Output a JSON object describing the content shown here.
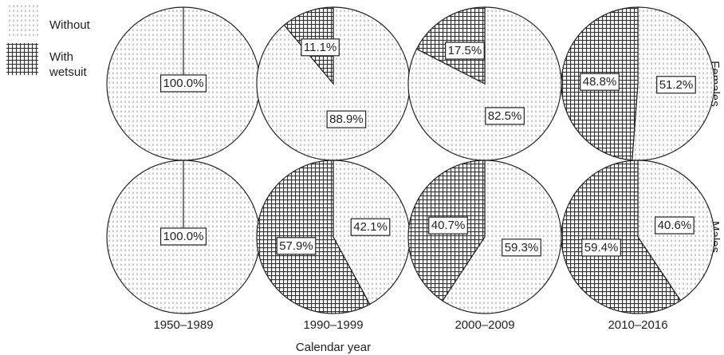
{
  "legend": {
    "series": [
      {
        "name": "Without",
        "pattern": "dots"
      },
      {
        "name": "With wetsuit",
        "pattern": "grid"
      }
    ]
  },
  "columns": [
    "1950–1989",
    "1990–1999",
    "2000–2009",
    "2010–2016"
  ],
  "rows": [
    "Females",
    "Males"
  ],
  "x_label": "Calendar year",
  "chart_data": [
    {
      "type": "pie",
      "values": [
        100,
        0
      ],
      "value_labels": [
        "100.0%",
        null
      ]
    },
    {
      "type": "pie",
      "values": [
        88.9,
        11.1
      ],
      "value_labels": [
        "88.9%",
        "11.1%"
      ]
    },
    {
      "type": "pie",
      "values": [
        82.5,
        17.5
      ],
      "value_labels": [
        "82.5%",
        "17.5%"
      ]
    },
    {
      "type": "pie",
      "values": [
        51.2,
        48.8
      ],
      "value_labels": [
        "51.2%",
        "48.8%"
      ]
    },
    {
      "type": "pie",
      "values": [
        100,
        0
      ],
      "value_labels": [
        "100.0%",
        null
      ]
    },
    {
      "type": "pie",
      "values": [
        42.1,
        57.9
      ],
      "value_labels": [
        "42.1%",
        "57.9%"
      ]
    },
    {
      "type": "pie",
      "values": [
        59.3,
        40.7
      ],
      "value_labels": [
        "59.3%",
        "40.7%"
      ]
    },
    {
      "type": "pie",
      "values": [
        40.6,
        59.4
      ],
      "value_labels": [
        "40.6%",
        "59.4%"
      ]
    }
  ]
}
